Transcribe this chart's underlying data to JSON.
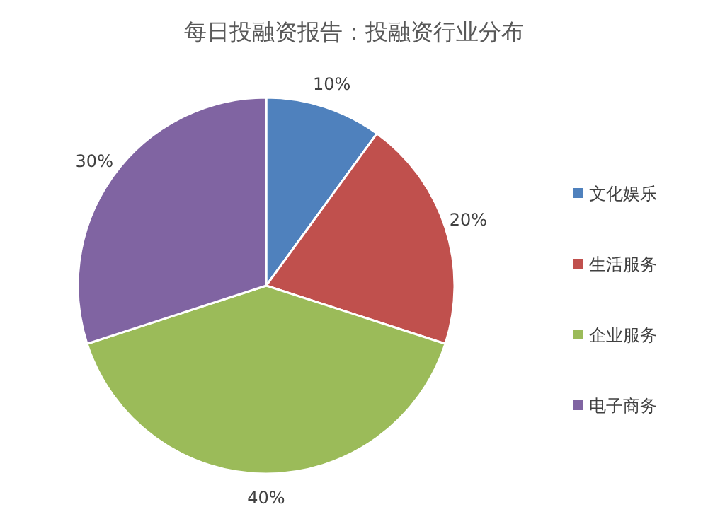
{
  "chart_data": {
    "type": "pie",
    "title": "每日投融资报告：投融资行业分布",
    "categories": [
      "文化娱乐",
      "生活服务",
      "企业服务",
      "电子商务"
    ],
    "values": [
      10,
      20,
      40,
      30
    ],
    "colors": [
      "#4f81bd",
      "#c0504d",
      "#9bbb59",
      "#8064a2"
    ],
    "value_labels": [
      "10%",
      "20%",
      "40%",
      "30%"
    ],
    "legend": "right"
  }
}
